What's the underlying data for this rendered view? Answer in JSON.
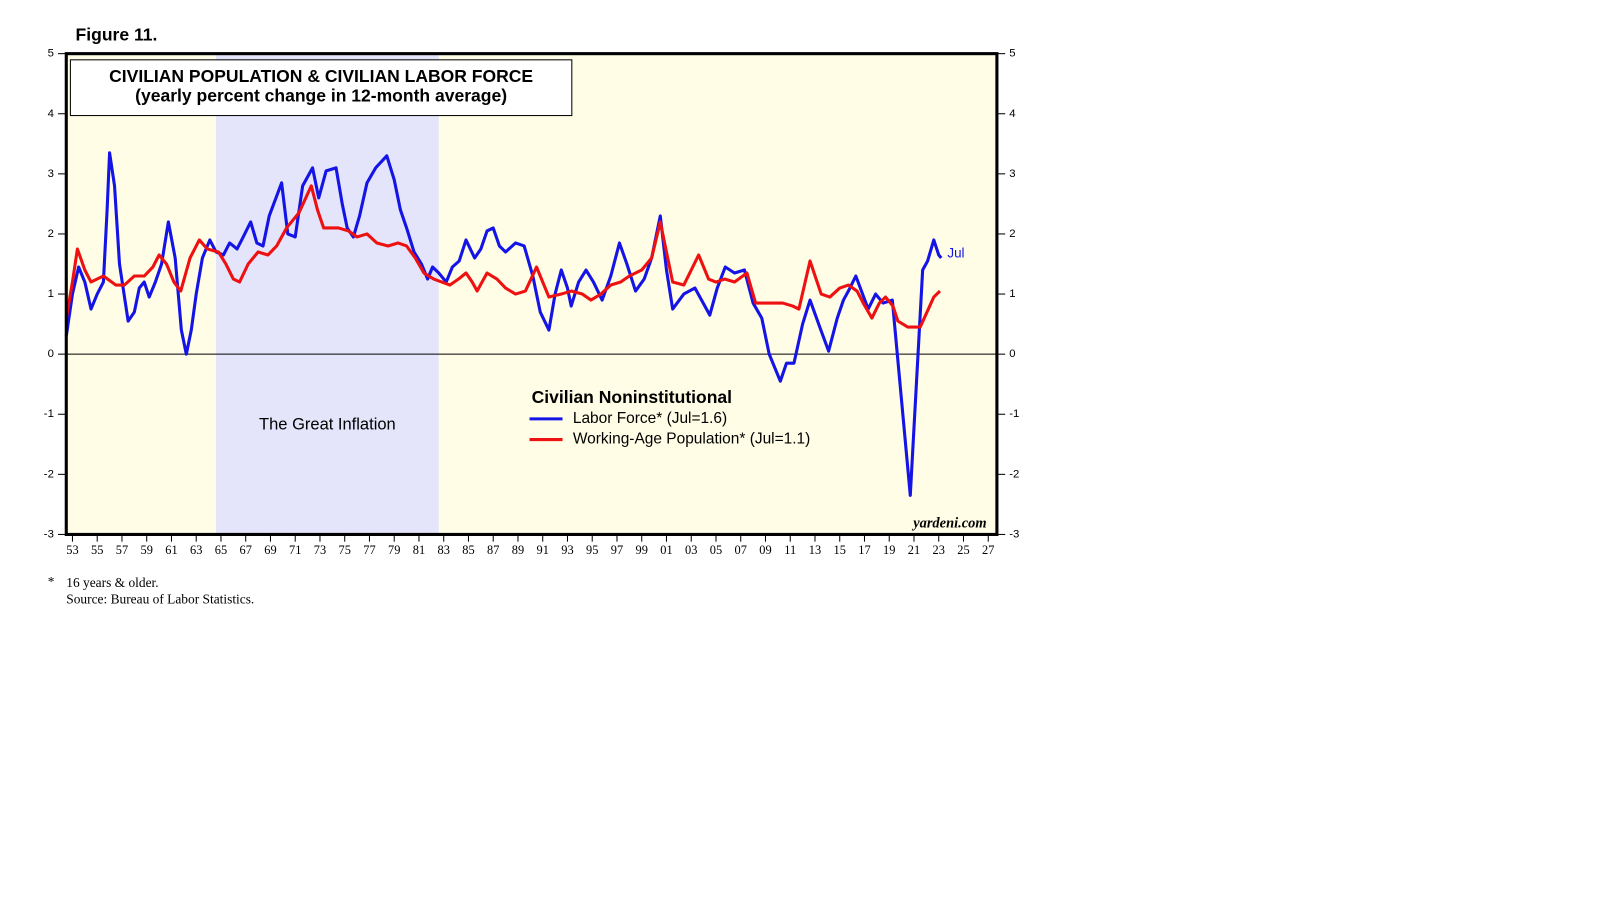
{
  "chart_data": {
    "type": "line",
    "figure_label": "Figure 11.",
    "title": "CIVILIAN POPULATION & CIVILIAN LABOR FORCE",
    "subtitle": "(yearly percent change in 12-month average)",
    "legend_title": "Civilian Noninstitutional",
    "end_label": "Jul",
    "watermark": "yardeni.com",
    "footnote_mark": "*",
    "footnote": "16 years & older.",
    "source": "Source: Bureau of Labor Statistics.",
    "shade": {
      "x": [
        1964.6,
        1982.6
      ],
      "label": "The Great Inflation",
      "color": "#e4e4fa"
    },
    "background": "#fffde6",
    "xlim": [
      1952.5,
      2027.7
    ],
    "ylim": [
      -3,
      5
    ],
    "yticks": [
      -3,
      -2,
      -1,
      0,
      1,
      2,
      3,
      4,
      5
    ],
    "xticks": [
      {
        "value": 1953,
        "label": "53"
      },
      {
        "value": 1955,
        "label": "55"
      },
      {
        "value": 1957,
        "label": "57"
      },
      {
        "value": 1959,
        "label": "59"
      },
      {
        "value": 1961,
        "label": "61"
      },
      {
        "value": 1963,
        "label": "63"
      },
      {
        "value": 1965,
        "label": "65"
      },
      {
        "value": 1967,
        "label": "67"
      },
      {
        "value": 1969,
        "label": "69"
      },
      {
        "value": 1971,
        "label": "71"
      },
      {
        "value": 1973,
        "label": "73"
      },
      {
        "value": 1975,
        "label": "75"
      },
      {
        "value": 1977,
        "label": "77"
      },
      {
        "value": 1979,
        "label": "79"
      },
      {
        "value": 1981,
        "label": "81"
      },
      {
        "value": 1983,
        "label": "83"
      },
      {
        "value": 1985,
        "label": "85"
      },
      {
        "value": 1987,
        "label": "87"
      },
      {
        "value": 1989,
        "label": "89"
      },
      {
        "value": 1991,
        "label": "91"
      },
      {
        "value": 1993,
        "label": "93"
      },
      {
        "value": 1995,
        "label": "95"
      },
      {
        "value": 1997,
        "label": "97"
      },
      {
        "value": 1999,
        "label": "99"
      },
      {
        "value": 2001,
        "label": "01"
      },
      {
        "value": 2003,
        "label": "03"
      },
      {
        "value": 2005,
        "label": "05"
      },
      {
        "value": 2007,
        "label": "07"
      },
      {
        "value": 2009,
        "label": "09"
      },
      {
        "value": 2011,
        "label": "11"
      },
      {
        "value": 2013,
        "label": "13"
      },
      {
        "value": 2015,
        "label": "15"
      },
      {
        "value": 2017,
        "label": "17"
      },
      {
        "value": 2019,
        "label": "19"
      },
      {
        "value": 2021,
        "label": "21"
      },
      {
        "value": 2023,
        "label": "23"
      },
      {
        "value": 2025,
        "label": "25"
      },
      {
        "value": 2027,
        "label": "27"
      }
    ],
    "series": [
      {
        "name": "Labor Force* (Jul=1.6)",
        "color": "#1414e6",
        "x": [
          1952.5,
          1953,
          1953.5,
          1954,
          1954.5,
          1955,
          1955.5,
          1955.8,
          1956,
          1956.4,
          1956.8,
          1957.5,
          1958,
          1958.4,
          1958.8,
          1959.2,
          1959.7,
          1960.2,
          1960.75,
          1961.3,
          1961.8,
          1962.2,
          1962.6,
          1963,
          1963.5,
          1964.1,
          1964.6,
          1965.2,
          1965.7,
          1966.3,
          1966.8,
          1967.4,
          1967.9,
          1968.4,
          1968.9,
          1969.9,
          1970.4,
          1971,
          1971.6,
          1972.4,
          1972.9,
          1973.5,
          1974.3,
          1974.8,
          1975.2,
          1975.7,
          1976.2,
          1976.8,
          1977.5,
          1978.4,
          1979,
          1979.5,
          1980,
          1980.6,
          1981.2,
          1981.7,
          1982.1,
          1982.6,
          1983.2,
          1983.7,
          1984.25,
          1984.8,
          1985.5,
          1986,
          1986.5,
          1987,
          1987.5,
          1988,
          1988.8,
          1989.5,
          1990.2,
          1990.8,
          1991.5,
          1992,
          1992.5,
          1993,
          1993.3,
          1993.9,
          1994.5,
          1995.1,
          1995.8,
          1996.5,
          1997.2,
          1997.8,
          1998.5,
          1999.2,
          1999.8,
          2000.5,
          2001,
          2001.5,
          2002.4,
          2003.3,
          2004.5,
          2005.1,
          2005.75,
          2006.5,
          2007.3,
          2008,
          2008.7,
          2009.3,
          2010.2,
          2010.7,
          2011.3,
          2012,
          2012.6,
          2013.3,
          2014.1,
          2014.8,
          2015.3,
          2015.7,
          2016.3,
          2017.3,
          2017.9,
          2018.5,
          2019.25,
          2020.7,
          2021.7,
          2022.1,
          2022.6,
          2023,
          2023.2
        ],
        "values": [
          0.3,
          1.0,
          1.45,
          1.2,
          0.75,
          1.0,
          1.2,
          2.4,
          3.35,
          2.8,
          1.5,
          0.55,
          0.7,
          1.1,
          1.2,
          0.95,
          1.2,
          1.5,
          2.2,
          1.6,
          0.4,
          0.0,
          0.4,
          1.0,
          1.6,
          1.9,
          1.7,
          1.65,
          1.85,
          1.75,
          1.95,
          2.2,
          1.85,
          1.8,
          2.3,
          2.85,
          2.0,
          1.95,
          2.8,
          3.1,
          2.6,
          3.05,
          3.1,
          2.5,
          2.1,
          1.95,
          2.3,
          2.85,
          3.1,
          3.3,
          2.9,
          2.4,
          2.1,
          1.7,
          1.5,
          1.25,
          1.45,
          1.35,
          1.2,
          1.45,
          1.55,
          1.9,
          1.6,
          1.75,
          2.05,
          2.1,
          1.8,
          1.7,
          1.85,
          1.8,
          1.3,
          0.7,
          0.4,
          1.0,
          1.4,
          1.1,
          0.8,
          1.2,
          1.4,
          1.2,
          0.9,
          1.3,
          1.85,
          1.5,
          1.05,
          1.25,
          1.6,
          2.3,
          1.4,
          0.75,
          1.0,
          1.1,
          0.65,
          1.1,
          1.45,
          1.35,
          1.4,
          0.85,
          0.6,
          0.0,
          -0.45,
          -0.15,
          -0.15,
          0.5,
          0.9,
          0.5,
          0.05,
          0.6,
          0.9,
          1.05,
          1.3,
          0.75,
          1.0,
          0.85,
          0.9,
          -2.35,
          1.4,
          1.55,
          1.9,
          1.65,
          1.6
        ]
      },
      {
        "name": "Working-Age Population* (Jul=1.1)",
        "color": "#ee1111",
        "x": [
          1952.5,
          1953,
          1953.4,
          1954,
          1954.5,
          1955.5,
          1956.5,
          1957.2,
          1958,
          1958.8,
          1959.5,
          1960,
          1960.6,
          1961.2,
          1961.75,
          1962.5,
          1963.25,
          1963.9,
          1964.8,
          1965.4,
          1966,
          1966.5,
          1967.2,
          1968,
          1968.8,
          1969.5,
          1970.3,
          1971.3,
          1972.3,
          1972.8,
          1973.3,
          1974.5,
          1975.3,
          1976,
          1976.8,
          1977.6,
          1978.5,
          1979.3,
          1980,
          1980.7,
          1981.4,
          1982.2,
          1983.5,
          1984.2,
          1984.8,
          1985.3,
          1985.7,
          1986.5,
          1987.3,
          1988,
          1988.8,
          1989.6,
          1990.5,
          1991.5,
          1992.5,
          1993.3,
          1994.2,
          1994.9,
          1995.7,
          1996.5,
          1997.3,
          1998,
          1999,
          1999.8,
          2000.5,
          2001.5,
          2002.4,
          2003,
          2003.6,
          2004.4,
          2005,
          2005.7,
          2006.5,
          2007.5,
          2008.2,
          2009.3,
          2010.4,
          2011.2,
          2011.7,
          2012.6,
          2013.5,
          2014.2,
          2015,
          2015.7,
          2016.4,
          2016.9,
          2017.6,
          2018.2,
          2018.7,
          2019.3,
          2019.7,
          2020.5,
          2021.5,
          2022.6,
          2023.1
        ],
        "values": [
          0.6,
          1.2,
          1.75,
          1.4,
          1.2,
          1.3,
          1.15,
          1.15,
          1.3,
          1.3,
          1.45,
          1.65,
          1.5,
          1.2,
          1.05,
          1.6,
          1.9,
          1.75,
          1.7,
          1.5,
          1.25,
          1.2,
          1.5,
          1.7,
          1.65,
          1.8,
          2.1,
          2.35,
          2.8,
          2.4,
          2.1,
          2.1,
          2.05,
          1.95,
          2.0,
          1.85,
          1.8,
          1.85,
          1.8,
          1.6,
          1.35,
          1.25,
          1.15,
          1.25,
          1.35,
          1.2,
          1.05,
          1.35,
          1.25,
          1.1,
          1.0,
          1.05,
          1.45,
          0.95,
          1.0,
          1.05,
          1.0,
          0.9,
          1.0,
          1.15,
          1.2,
          1.3,
          1.4,
          1.6,
          2.2,
          1.2,
          1.15,
          1.4,
          1.65,
          1.25,
          1.2,
          1.25,
          1.2,
          1.35,
          0.85,
          0.85,
          0.85,
          0.8,
          0.75,
          1.55,
          1.0,
          0.95,
          1.1,
          1.15,
          1.05,
          0.85,
          0.6,
          0.85,
          0.95,
          0.8,
          0.55,
          0.45,
          0.45,
          0.95,
          1.05
        ]
      }
    ]
  }
}
